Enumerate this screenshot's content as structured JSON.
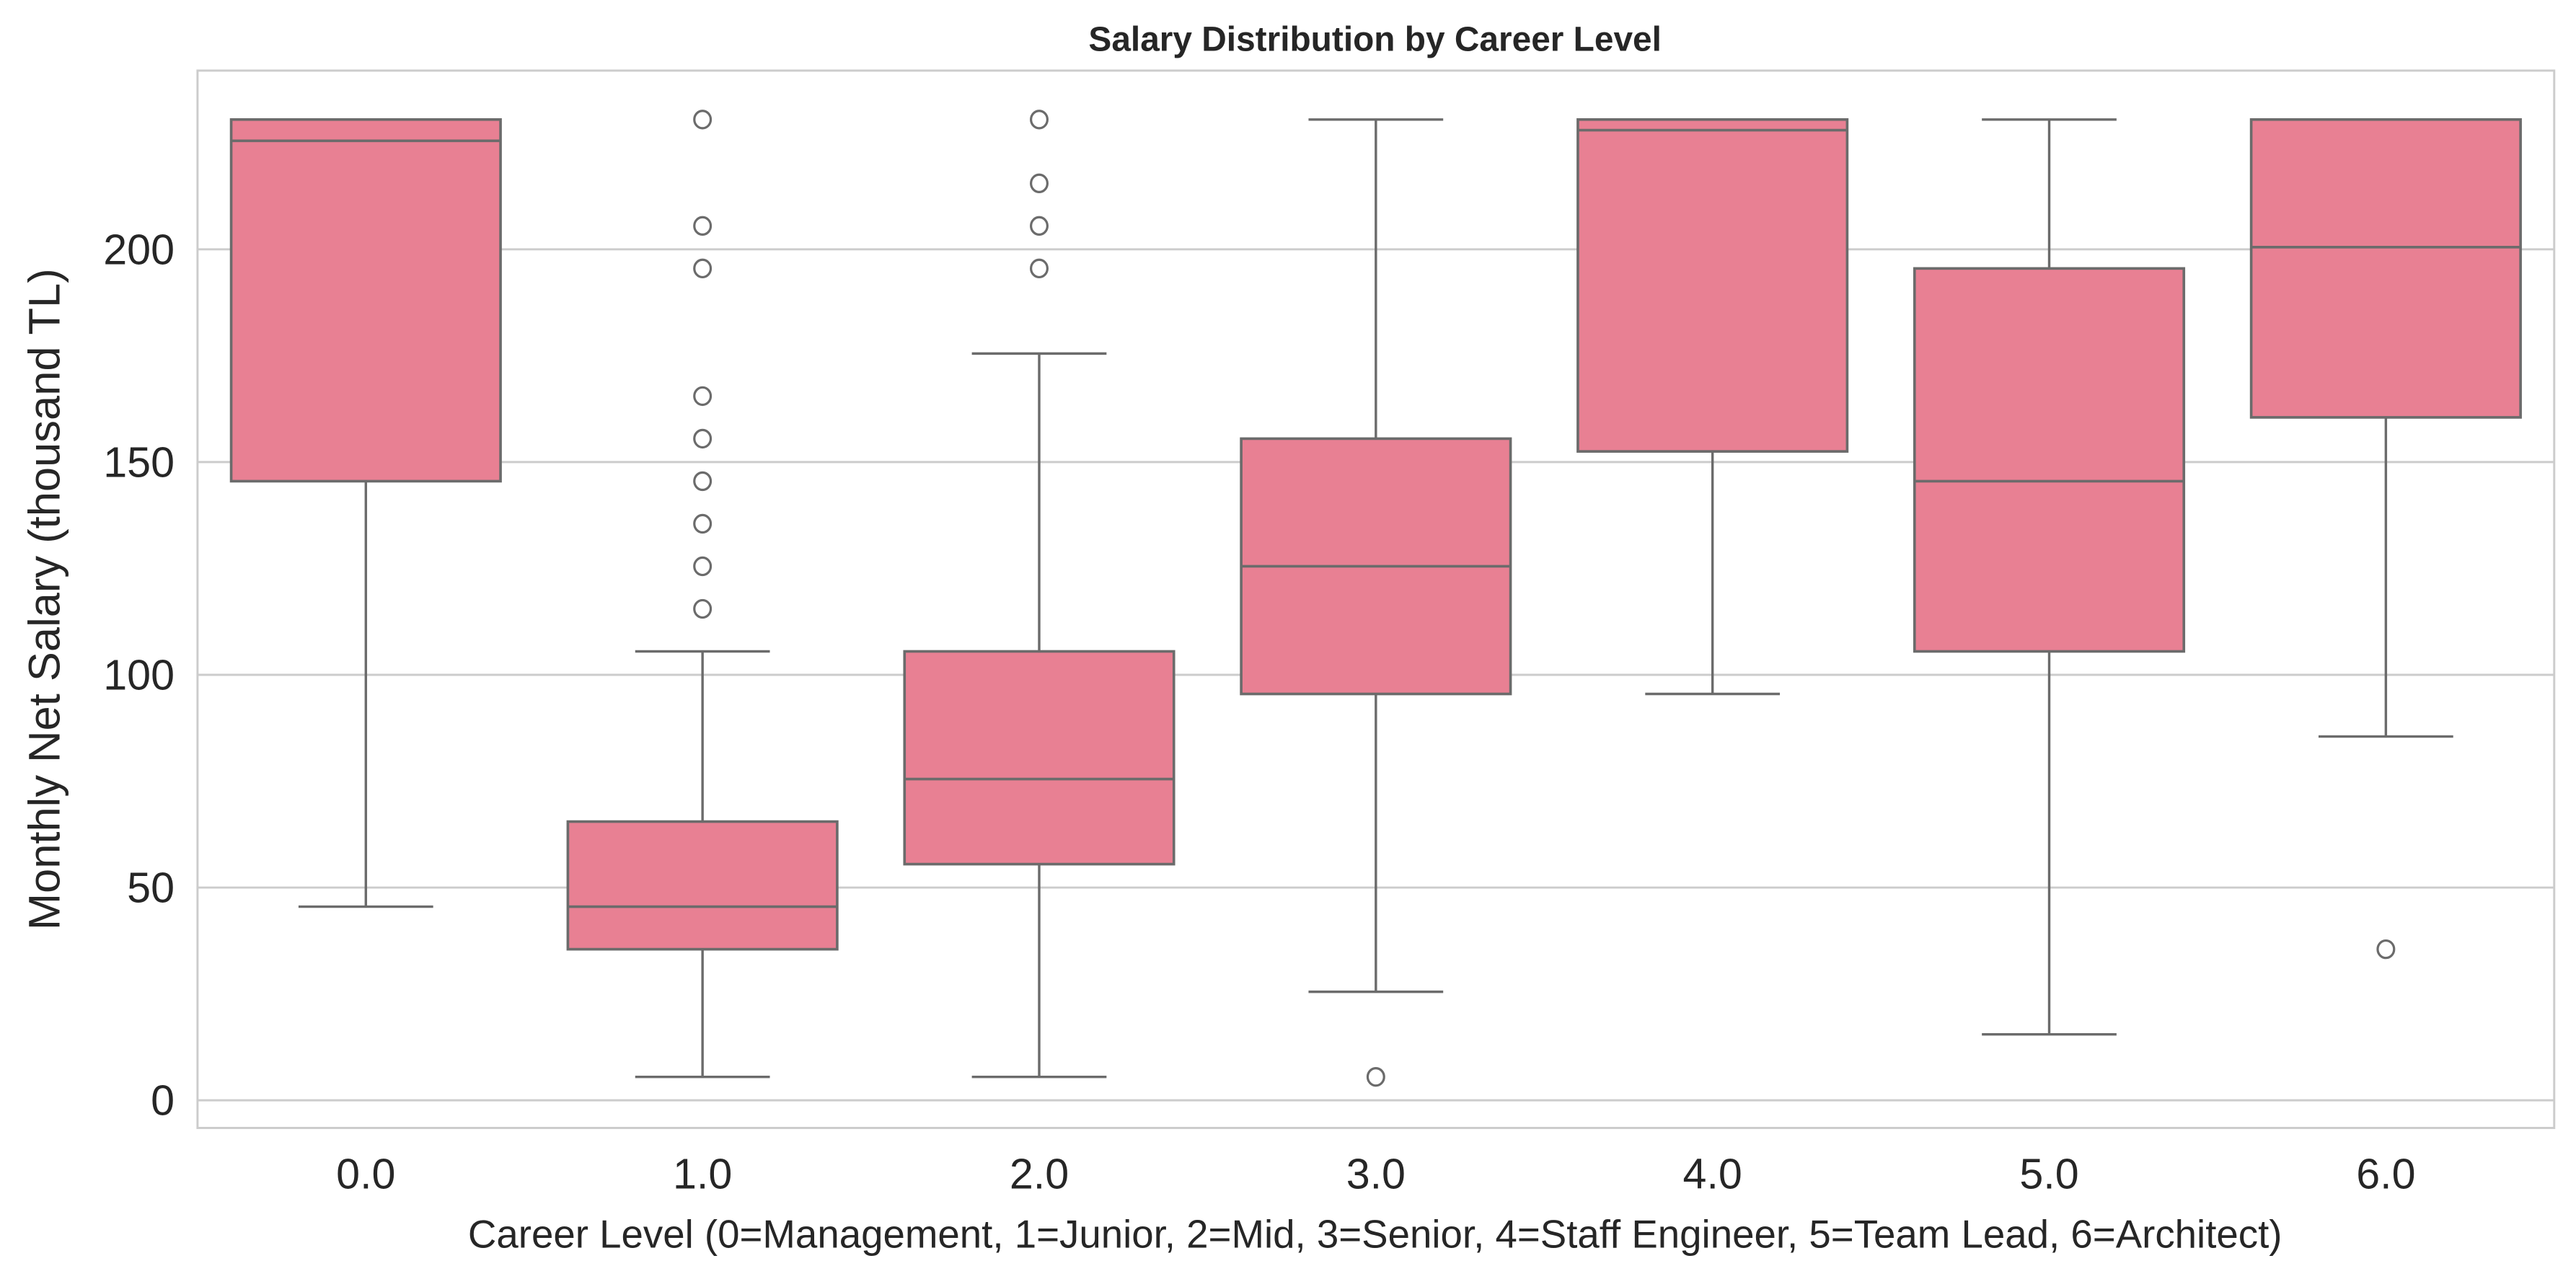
{
  "chart_data": {
    "type": "box",
    "title": "Salary Distribution by Career Level",
    "xlabel": "Career Level (0=Management, 1=Junior, 2=Mid, 3=Senior, 4=Staff Engineer, 5=Team Lead, 6=Architect)",
    "ylabel": "Monthly Net Salary (thousand TL)",
    "ylim": [
      -6.5,
      242
    ],
    "yticks": [
      0,
      50,
      100,
      150,
      200
    ],
    "grid": true,
    "colors": {
      "box": "#e88093",
      "line": "#6b6b6b",
      "grid": "#cccccc"
    },
    "categories": [
      "0.0",
      "1.0",
      "2.0",
      "3.0",
      "4.0",
      "5.0",
      "6.0"
    ],
    "boxes": [
      {
        "whislo": 45.5,
        "q1": 145.5,
        "med": 225.5,
        "q3": 230.5,
        "whishi": 230.5,
        "fliers": []
      },
      {
        "whislo": 5.5,
        "q1": 35.5,
        "med": 45.5,
        "q3": 65.5,
        "whishi": 105.5,
        "fliers": [
          115.5,
          125.5,
          135.5,
          145.5,
          155.5,
          165.5,
          195.5,
          205.5,
          230.5
        ]
      },
      {
        "whislo": 5.5,
        "q1": 55.5,
        "med": 75.5,
        "q3": 105.5,
        "whishi": 175.5,
        "fliers": [
          195.5,
          205.5,
          215.5,
          230.5
        ]
      },
      {
        "whislo": 25.5,
        "q1": 95.5,
        "med": 125.5,
        "q3": 155.5,
        "whishi": 230.5,
        "fliers": [
          5.5
        ]
      },
      {
        "whislo": 95.5,
        "q1": 152.5,
        "med": 228,
        "q3": 230.5,
        "whishi": 230.5,
        "fliers": []
      },
      {
        "whislo": 15.5,
        "q1": 105.5,
        "med": 145.5,
        "q3": 195.5,
        "whishi": 230.5,
        "fliers": []
      },
      {
        "whislo": 85.5,
        "q1": 160.5,
        "med": 200.5,
        "q3": 230.5,
        "whishi": 230.5,
        "fliers": [
          35.5
        ]
      }
    ]
  }
}
